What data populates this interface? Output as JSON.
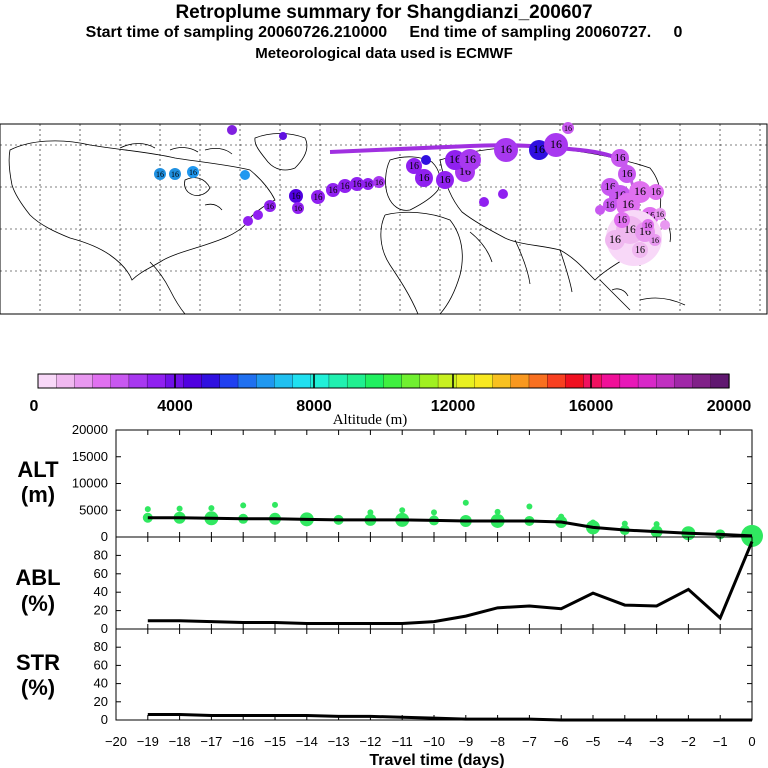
{
  "header": {
    "title": "Retroplume summary for Shangdianzi_200607",
    "sampling_line": "Start time of sampling 20060726.210000     End time of sampling 20060727.     0",
    "met_line": "Meteorological data used is ECMWF"
  },
  "colors": {
    "ribbon": [
      "#f8d8f8",
      "#f0b8f0",
      "#e898f0",
      "#e070f0",
      "#c858f0",
      "#a838f0",
      "#9020f0",
      "#7010e8",
      "#5000e0",
      "#3010e0",
      "#2040f0",
      "#2070f0",
      "#2098f0",
      "#20c0f0",
      "#20e0f0",
      "#20f0d8",
      "#20f0b0",
      "#20f090",
      "#20f060",
      "#40f040",
      "#70f030",
      "#a0f020",
      "#c8f020",
      "#e8f020",
      "#f8e820",
      "#f8c020",
      "#f89820",
      "#f87020",
      "#f84020",
      "#f01020",
      "#f01060",
      "#f01098",
      "#e818b8",
      "#d828c8",
      "#c030c0",
      "#a028a8",
      "#802088",
      "#601870"
    ],
    "map_track": "#a030e0",
    "alt_dots": "#30e860"
  },
  "map": {
    "dot_labels": [
      "16",
      "16",
      "16",
      "16",
      "16",
      "16",
      "16",
      "16",
      "16",
      "16",
      "16",
      "16",
      "16",
      "16",
      "16",
      "16",
      "16",
      "16",
      "16",
      "16",
      "16",
      "16",
      "16",
      "16",
      "16",
      "16",
      "16",
      "16",
      "16",
      "16",
      "16",
      "16",
      "16",
      "16",
      "16",
      "16",
      "16",
      "16",
      "16",
      "16",
      "16",
      "16",
      "16",
      "16",
      "16",
      "16",
      "16",
      "16",
      "16",
      "16"
    ]
  },
  "colorbar": {
    "ticks": [
      "0",
      "4000",
      "8000",
      "12000",
      "16000",
      "20000"
    ],
    "label": "Altitude (m)"
  },
  "chart_data": [
    {
      "type": "line",
      "panel": "ALT",
      "ylabel": "ALT\n(m)",
      "ylabel_lines": [
        "ALT",
        "(m)"
      ],
      "ylim": [
        0,
        20000
      ],
      "yticks": [
        "0",
        "5000",
        "10000",
        "15000",
        "20000"
      ],
      "x": [
        -19,
        -18,
        -17,
        -16,
        -15,
        -14,
        -13,
        -12,
        -11,
        -10,
        -9,
        -8,
        -7,
        -6,
        -5,
        -4,
        -3,
        -2,
        -1,
        0
      ],
      "values": [
        3600,
        3600,
        3500,
        3400,
        3400,
        3300,
        3200,
        3200,
        3200,
        3100,
        3000,
        3000,
        3000,
        2800,
        1800,
        1300,
        1000,
        700,
        500,
        200
      ],
      "dots_upper": [
        5200,
        5300,
        5400,
        5900,
        6000,
        null,
        null,
        4600,
        5000,
        4600,
        6400,
        4700,
        5700,
        3800,
        2700,
        2500,
        2400,
        null,
        null,
        null
      ]
    },
    {
      "type": "line",
      "panel": "ABL",
      "ylabel_lines": [
        "ABL",
        "(%)"
      ],
      "ylim": [
        0,
        100
      ],
      "yticks": [
        "0",
        "20",
        "40",
        "60",
        "80"
      ],
      "x": [
        -19,
        -18,
        -17,
        -16,
        -15,
        -14,
        -13,
        -12,
        -11,
        -10,
        -9,
        -8,
        -7,
        -6,
        -5,
        -4,
        -3,
        -2,
        -1,
        0
      ],
      "values": [
        9,
        9,
        8,
        7,
        7,
        6,
        6,
        6,
        6,
        8,
        14,
        23,
        25,
        22,
        39,
        26,
        25,
        43,
        12,
        95
      ]
    },
    {
      "type": "line",
      "panel": "STR",
      "ylabel_lines": [
        "STR",
        "(%)"
      ],
      "ylim": [
        0,
        100
      ],
      "yticks": [
        "0",
        "20",
        "40",
        "60",
        "80"
      ],
      "x": [
        -19,
        -18,
        -17,
        -16,
        -15,
        -14,
        -13,
        -12,
        -11,
        -10,
        -9,
        -8,
        -7,
        -6,
        -5,
        -4,
        -3,
        -2,
        -1,
        0
      ],
      "values": [
        6,
        6,
        5,
        5,
        5,
        5,
        4,
        4,
        3,
        2,
        1,
        1,
        1,
        0,
        0,
        0,
        0,
        0,
        0,
        0
      ]
    }
  ],
  "xaxis": {
    "ticks": [
      "−20",
      "−19",
      "−18",
      "−17",
      "−16",
      "−15",
      "−14",
      "−13",
      "−12",
      "−11",
      "−10",
      "−9",
      "−8",
      "−7",
      "−6",
      "−5",
      "−4",
      "−3",
      "−2",
      "−1",
      "0"
    ],
    "label": "Travel time (days)"
  }
}
